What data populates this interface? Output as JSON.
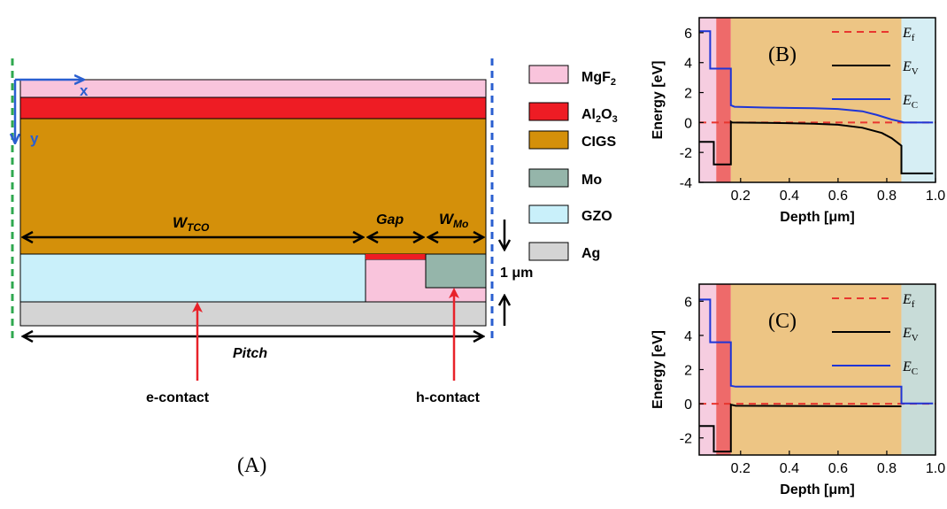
{
  "colors": {
    "MgF2": "#f9c4dc",
    "Al2O3": "#ee1c24",
    "CIGS": "#d4900a",
    "Mo": "#95b5aa",
    "GZO": "#c9f0fa",
    "Ag": "#d4d4d4",
    "Ef": "#e8362f",
    "EV": "#000000",
    "EC": "#1f35d6",
    "axis_blue": "#2a5fd0",
    "boundary_green": "#2fa84f",
    "boundary_blue": "#2a5fd0",
    "arrow_red": "#e8222a",
    "band_mgf2": "#f6cde0",
    "band_al2o3": "#ee6a6a",
    "band_cigs": "#edc584",
    "band_mo_right": "#c8dcd8",
    "band_gzo_right": "#d6eef4"
  },
  "panel_a": {
    "label": "(A)",
    "axis_x": "x",
    "axis_y": "y",
    "dim_wtco": "W",
    "dim_wtco_sub": "TCO",
    "dim_gap": "Gap",
    "dim_wmo": "W",
    "dim_wmo_sub": "Mo",
    "dim_thickness": "1 μm",
    "dim_pitch": "Pitch",
    "e_contact": "e-contact",
    "h_contact": "h-contact",
    "legend": [
      {
        "key": "MgF2",
        "text": "MgF",
        "sub": "2",
        "text2": ""
      },
      {
        "key": "Al2O3",
        "text": "Al",
        "sub": "2",
        "text2": "O",
        "sub2": "3"
      },
      {
        "key": "CIGS",
        "text": "CIGS"
      },
      {
        "key": "Mo",
        "text": "Mo"
      },
      {
        "key": "GZO",
        "text": "GZO"
      },
      {
        "key": "Ag",
        "text": "Ag"
      }
    ]
  },
  "chart_data": [
    {
      "type": "line",
      "panel_label": "(B)",
      "xlabel": "Depth [μm]",
      "ylabel": "Energy [eV]",
      "xlim": [
        0.03,
        1.0
      ],
      "ylim": [
        -4,
        7
      ],
      "xticks": [
        "0.2",
        "0.4",
        "0.6",
        "0.8",
        "1.0"
      ],
      "yticks": [
        "6",
        "4",
        "2",
        "0",
        "-2",
        "-4"
      ],
      "regions": [
        {
          "material": "MgF2",
          "from": 0.03,
          "to": 0.1
        },
        {
          "material": "Al2O3",
          "from": 0.1,
          "to": 0.16
        },
        {
          "material": "CIGS",
          "from": 0.16,
          "to": 0.86
        },
        {
          "material": "GZO",
          "from": 0.86,
          "to": 1.0
        }
      ],
      "legend": [
        {
          "name": "E",
          "sub": "f",
          "style": "dashed",
          "color_key": "Ef"
        },
        {
          "name": "E",
          "sub": "V",
          "style": "solid",
          "color_key": "EV"
        },
        {
          "name": "E",
          "sub": "C",
          "style": "solid",
          "color_key": "EC"
        }
      ],
      "series": [
        {
          "name": "Ef",
          "x": [
            0.03,
            1.0
          ],
          "y": [
            0,
            0
          ]
        },
        {
          "name": "EV",
          "x": [
            0.03,
            0.09,
            0.09,
            0.16,
            0.16,
            0.165,
            0.3,
            0.5,
            0.6,
            0.7,
            0.78,
            0.82,
            0.86,
            0.86,
            0.99
          ],
          "y": [
            -1.3,
            -1.3,
            -2.8,
            -2.8,
            0.05,
            0.0,
            -0.02,
            -0.08,
            -0.15,
            -0.35,
            -0.7,
            -1.05,
            -1.55,
            -3.4,
            -3.4
          ]
        },
        {
          "name": "EC",
          "x": [
            0.03,
            0.075,
            0.075,
            0.16,
            0.16,
            0.175,
            0.3,
            0.5,
            0.6,
            0.7,
            0.76,
            0.82,
            0.86,
            0.87,
            0.99
          ],
          "y": [
            6.1,
            6.1,
            3.6,
            3.6,
            1.15,
            1.05,
            1.0,
            0.95,
            0.9,
            0.75,
            0.5,
            0.2,
            0.05,
            0.0,
            0.0
          ]
        }
      ]
    },
    {
      "type": "line",
      "panel_label": "(C)",
      "xlabel": "Depth [μm]",
      "ylabel": "Energy [eV]",
      "xlim": [
        0.03,
        1.0
      ],
      "ylim": [
        -3,
        7
      ],
      "xticks": [
        "0.2",
        "0.4",
        "0.6",
        "0.8",
        "1.0"
      ],
      "yticks": [
        "6",
        "4",
        "2",
        "0",
        "-2"
      ],
      "regions": [
        {
          "material": "MgF2",
          "from": 0.03,
          "to": 0.1
        },
        {
          "material": "Al2O3",
          "from": 0.1,
          "to": 0.16
        },
        {
          "material": "CIGS",
          "from": 0.16,
          "to": 0.86
        },
        {
          "material": "Mo",
          "from": 0.86,
          "to": 1.0
        }
      ],
      "legend": [
        {
          "name": "E",
          "sub": "f",
          "style": "dashed",
          "color_key": "Ef"
        },
        {
          "name": "E",
          "sub": "V",
          "style": "solid",
          "color_key": "EV"
        },
        {
          "name": "E",
          "sub": "C",
          "style": "solid",
          "color_key": "EC"
        }
      ],
      "series": [
        {
          "name": "Ef",
          "x": [
            0.03,
            1.0
          ],
          "y": [
            0,
            0
          ]
        },
        {
          "name": "EV",
          "x": [
            0.03,
            0.09,
            0.09,
            0.16,
            0.16,
            0.18,
            0.86
          ],
          "y": [
            -1.3,
            -1.3,
            -2.8,
            -2.8,
            -0.05,
            -0.12,
            -0.15
          ]
        },
        {
          "name": "EC",
          "x": [
            0.03,
            0.075,
            0.075,
            0.16,
            0.16,
            0.18,
            0.86,
            0.86,
            0.99
          ],
          "y": [
            6.1,
            6.1,
            3.6,
            3.6,
            1.05,
            1.0,
            1.0,
            0.02,
            0.02
          ]
        }
      ]
    }
  ]
}
